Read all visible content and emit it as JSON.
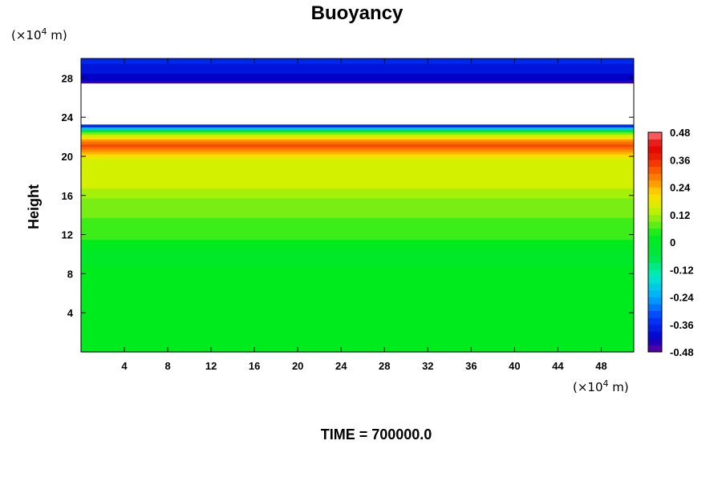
{
  "chart_data": {
    "type": "heatmap",
    "title": "Buoyancy",
    "ylabel": "Height",
    "y_unit": {
      "prefix": "(×10",
      "exp": "4",
      "suffix": " m)"
    },
    "x_unit": {
      "prefix": "(×10",
      "exp": "4",
      "suffix": " m)"
    },
    "xlim": [
      0,
      51
    ],
    "ylim": [
      0,
      30
    ],
    "x_ticks": [
      4,
      8,
      12,
      16,
      20,
      24,
      28,
      32,
      36,
      40,
      44,
      48
    ],
    "y_ticks": [
      4,
      8,
      12,
      16,
      20,
      24,
      28
    ],
    "colorbar": {
      "min": -0.48,
      "max": 0.48,
      "step": 0.03,
      "ticks": [
        "0.48",
        "0.36",
        "0.24",
        "0.12",
        "0",
        "-0.12",
        "-0.24",
        "-0.36",
        "-0.48"
      ]
    },
    "profile": [
      {
        "height": 0,
        "value": 0.03
      },
      {
        "height": 8,
        "value": 0.03
      },
      {
        "height": 9.5,
        "value": 0.0
      },
      {
        "height": 10.5,
        "value": 0.015
      },
      {
        "height": 12,
        "value": 0.06
      },
      {
        "height": 15.5,
        "value": 0.09
      },
      {
        "height": 16,
        "value": 0.13
      },
      {
        "height": 19.5,
        "value": 0.15
      },
      {
        "height": 20.3,
        "value": 0.24
      },
      {
        "height": 21,
        "value": 0.33
      },
      {
        "height": 21.8,
        "value": 0.24
      },
      {
        "height": 22.3,
        "value": 0.12
      },
      {
        "height": 22.8,
        "value": -0.15
      },
      {
        "height": 23.2,
        "value": -0.42
      },
      {
        "height": 27.3,
        "value": -0.48
      },
      {
        "height": 28,
        "value": -0.42
      },
      {
        "height": 29,
        "value": -0.39
      },
      {
        "height": 30,
        "value": -0.36
      }
    ],
    "missing_band": [
      23.2,
      27.4
    ]
  },
  "footer": "TIME = 700000.0"
}
